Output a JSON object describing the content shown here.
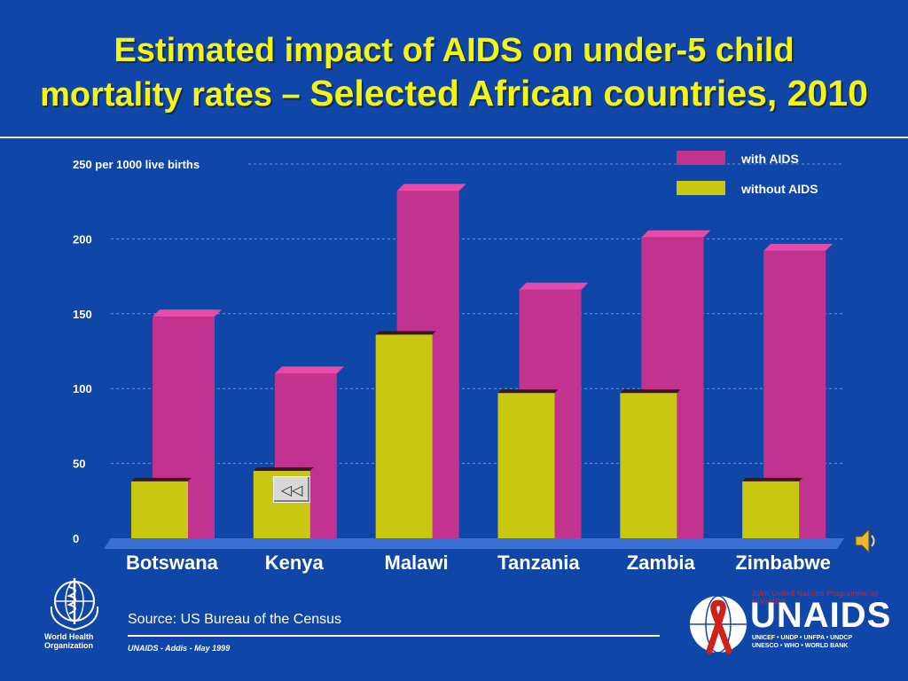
{
  "slide": {
    "title_line1": "Estimated impact of AIDS on under-5 child",
    "title_line2_a": "mortality rates – ",
    "title_line2_b": "Selected African countries, 2010",
    "source": "Source: US Bureau of  the Census",
    "footnote": "UNAIDS - Addis - May 1999",
    "who_label_line1": "World Health",
    "who_label_line2": "Organization",
    "unaids_wordmark": "UNAIDS",
    "unaids_tagline": "Joint United Nations Programme on HIV/AIDS",
    "unaids_sponsors_line1": "UNICEF • UNDP • UNFPA • UNDCP",
    "unaids_sponsors_line2": "UNESCO • WHO • WORLD BANK",
    "back_button_symbol": "◁◁",
    "speaker_icon": "speaker-icon"
  },
  "colors": {
    "background": "#1046a8",
    "title": "#f5f512",
    "with_aids": "#c2338f",
    "with_aids_top": "#e84aa8",
    "without_aids": "#c8c812",
    "without_aids_top": "#3a1a10",
    "gridline": "#6f8fd8"
  },
  "chart_data": {
    "type": "bar",
    "title": "Estimated impact of AIDS on under-5 child mortality rates – Selected African countries, 2010",
    "categories": [
      "Botswana",
      "Kenya",
      "Malawi",
      "Tanzania",
      "Zambia",
      "Zimbabwe"
    ],
    "series": [
      {
        "name": "with AIDS",
        "values": [
          148,
          110,
          232,
          166,
          201,
          192
        ]
      },
      {
        "name": "without AIDS",
        "values": [
          38,
          45,
          136,
          97,
          97,
          38
        ]
      }
    ],
    "ylim": [
      0,
      250
    ],
    "yticks": [
      0,
      50,
      100,
      150,
      200,
      250
    ],
    "top_tick_label": "250 per 1000 live births",
    "grid": true,
    "legend": "top-right"
  }
}
